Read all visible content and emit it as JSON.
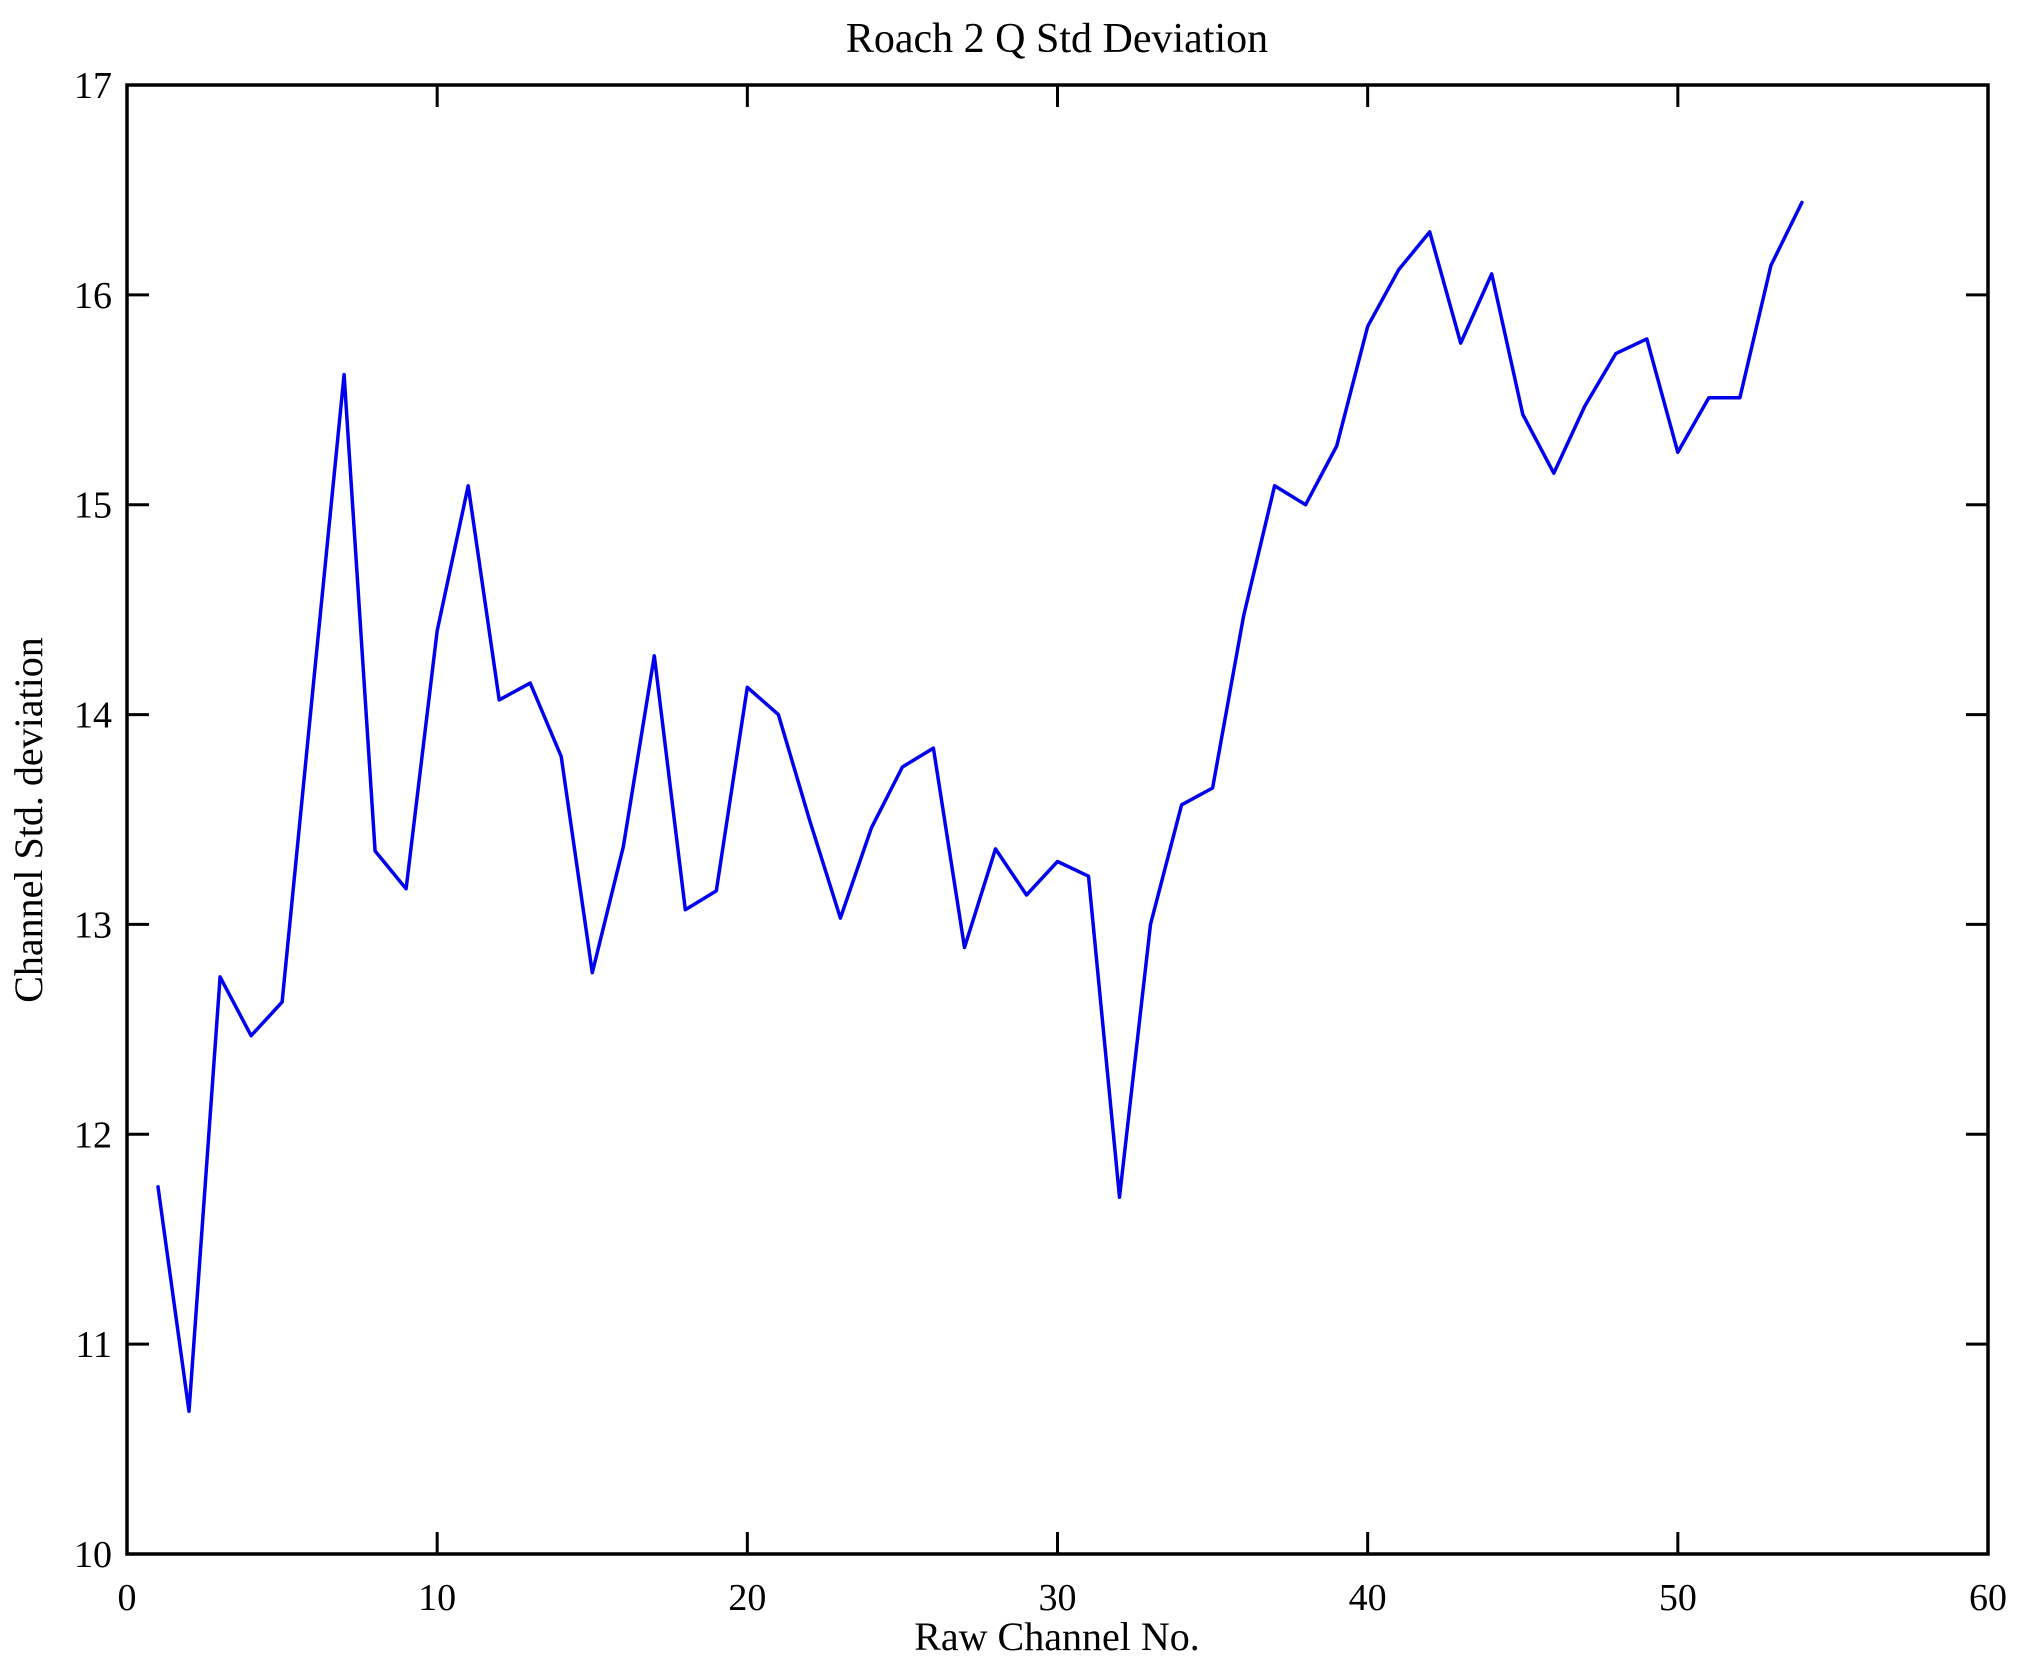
{
  "title": "Roach 2 Q Std Deviation",
  "chart_data": {
    "type": "line",
    "title": "Roach 2 Q Std Deviation",
    "xlabel": "Raw Channel No.",
    "ylabel": "Channel Std. deviation",
    "xlim": [
      0,
      60
    ],
    "ylim": [
      10,
      17
    ],
    "xticks": [
      0,
      10,
      20,
      30,
      40,
      50,
      60
    ],
    "yticks": [
      10,
      11,
      12,
      13,
      14,
      15,
      16,
      17
    ],
    "grid": false,
    "legend": "none",
    "line_color": "#0000ee",
    "axis_color": "#000000",
    "x": [
      1,
      2,
      3,
      4,
      5,
      6,
      7,
      8,
      9,
      10,
      11,
      12,
      13,
      14,
      15,
      16,
      17,
      18,
      19,
      20,
      21,
      22,
      23,
      24,
      25,
      26,
      27,
      28,
      29,
      30,
      31,
      32,
      33,
      34,
      35,
      36,
      37,
      38,
      39,
      40,
      41,
      42,
      43,
      44,
      45,
      46,
      47,
      48,
      49,
      50,
      51,
      52,
      53,
      54
    ],
    "y": [
      11.75,
      10.68,
      12.75,
      12.47,
      12.63,
      14.13,
      15.62,
      13.35,
      13.17,
      14.4,
      15.09,
      14.07,
      14.15,
      13.8,
      12.77,
      13.37,
      14.28,
      13.07,
      13.16,
      14.13,
      14.0,
      13.5,
      13.03,
      13.46,
      13.75,
      13.84,
      12.89,
      13.36,
      13.14,
      13.3,
      13.23,
      11.7,
      13.0,
      13.57,
      13.65,
      14.47,
      15.09,
      15.0,
      15.28,
      15.85,
      16.12,
      16.3,
      15.77,
      16.1,
      15.43,
      15.15,
      15.47,
      15.72,
      15.79,
      15.25,
      15.51,
      15.51,
      16.14,
      16.44
    ]
  }
}
